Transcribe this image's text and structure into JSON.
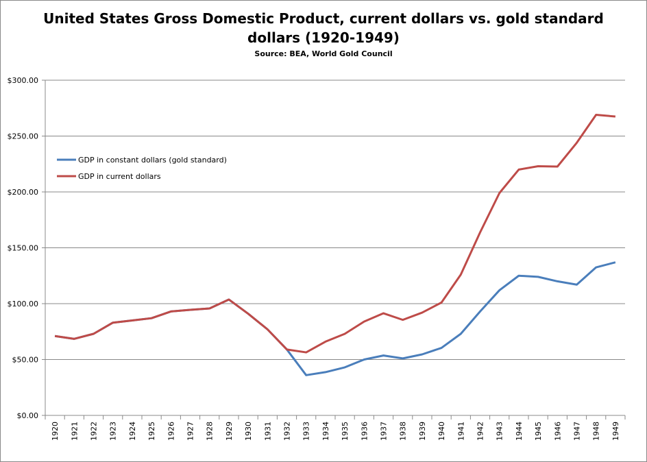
{
  "chart_data": {
    "type": "line",
    "title_line1": "United States Gross Domestic Product, current dollars vs. gold standard",
    "title_line2": "dollars (1920-1949)",
    "subtitle": "Source: BEA, World Gold Council",
    "xlabel": "",
    "ylabel": "",
    "ylim": [
      0,
      300
    ],
    "y_ticks": [
      "$0.00",
      "$50.00",
      "$100.00",
      "$150.00",
      "$200.00",
      "$250.00",
      "$300.00"
    ],
    "categories": [
      "1920",
      "1921",
      "1922",
      "1923",
      "1924",
      "1925",
      "1926",
      "1927",
      "1928",
      "1929",
      "1930",
      "1931",
      "1932",
      "1933",
      "1934",
      "1935",
      "1936",
      "1937",
      "1938",
      "1939",
      "1940",
      "1941",
      "1942",
      "1943",
      "1944",
      "1945",
      "1946",
      "1947",
      "1948",
      "1949"
    ],
    "grid": true,
    "legend_position": "left",
    "series": [
      {
        "name": "GDP in constant dollars (gold standard)",
        "color": "#4a7ebb",
        "values": [
          71,
          68.5,
          73,
          83,
          85,
          87,
          93,
          94.5,
          95.7,
          103.7,
          91,
          77,
          59,
          36,
          38.7,
          43,
          50,
          53.6,
          51,
          54.6,
          60.4,
          73,
          93,
          112,
          125,
          124,
          120,
          117,
          132.5,
          137
        ]
      },
      {
        "name": "GDP in current dollars",
        "color": "#be4b48",
        "values": [
          71,
          68.5,
          73,
          83,
          85,
          87,
          93,
          94.5,
          95.7,
          103.7,
          91,
          77,
          59,
          56.4,
          66,
          73,
          84,
          91.4,
          85.5,
          92,
          101,
          126,
          163.8,
          199,
          220,
          223,
          222.7,
          244,
          269,
          267.5
        ]
      }
    ]
  }
}
